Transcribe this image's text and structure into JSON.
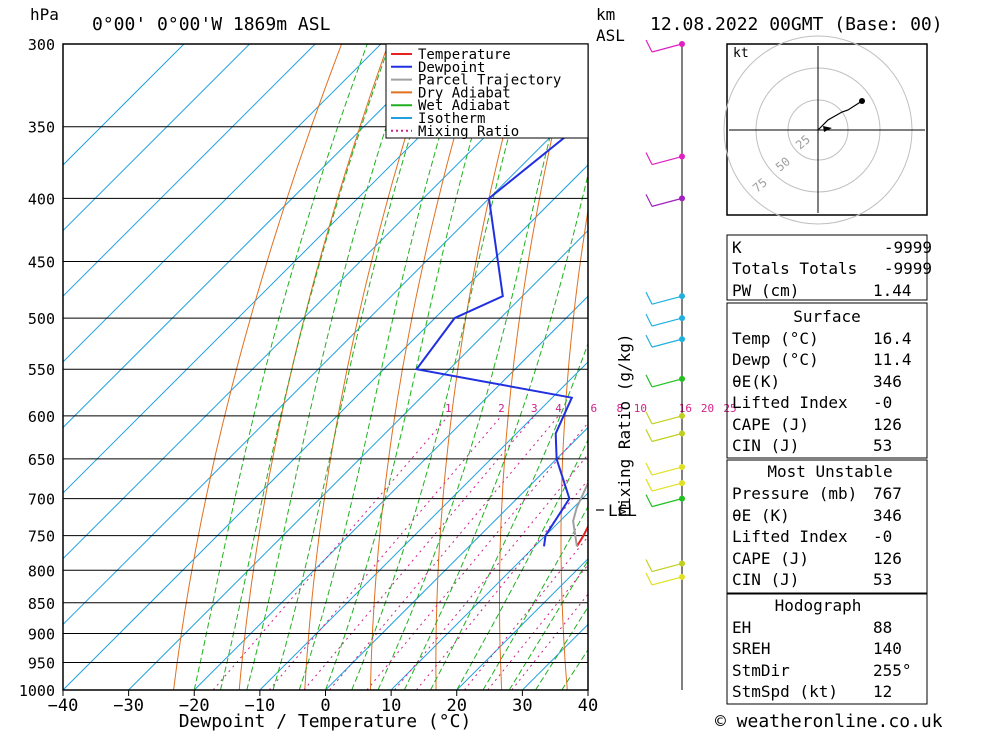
{
  "header": {
    "pressure_unit": "hPa",
    "location": "0°00' 0°00'W  1869m  ASL",
    "km_label": "km",
    "asl_label": "ASL",
    "datetime": "12.08.2022  00GMT  (Base: 00)"
  },
  "footer": {
    "credit": "© weatheronline.co.uk"
  },
  "legend": [
    {
      "label": "Temperature",
      "color": "#e82020",
      "dashed": false
    },
    {
      "label": "Dewpoint",
      "color": "#2030e0",
      "dashed": false
    },
    {
      "label": "Parcel Trajectory",
      "color": "#a0a0a0",
      "dashed": false
    },
    {
      "label": "Dry Adiabat",
      "color": "#e07020",
      "dashed": false
    },
    {
      "label": "Wet Adiabat",
      "color": "#20b020",
      "dashed": false
    },
    {
      "label": "Isotherm",
      "color": "#20a0e0",
      "dashed": false
    },
    {
      "label": "Mixing Ratio",
      "color": "#d0208a",
      "dashed": true
    }
  ],
  "chart_data": {
    "type": "line",
    "subtype": "skew-T log-P diagram",
    "xlabel": "Dewpoint / Temperature (°C)",
    "ylabel": "hPa",
    "xlim": [
      -40,
      40
    ],
    "ylim": [
      1000,
      300
    ],
    "y_scale": "log",
    "pressure_ticks": [
      300,
      350,
      400,
      450,
      500,
      550,
      600,
      650,
      700,
      750,
      800,
      850,
      900,
      950,
      1000
    ],
    "temperature_ticks": [
      -40,
      -30,
      -20,
      -10,
      0,
      10,
      20,
      30,
      40
    ],
    "mixing_ratio_axis_label": "Mixing Ratio (g/kg)",
    "mixing_ratio_values": [
      1,
      2,
      3,
      4,
      6,
      8,
      10,
      16,
      20,
      25
    ],
    "lcl_label": "LCL",
    "lcl_pressure": 712,
    "series": [
      {
        "name": "Temperature",
        "color": "#e82020",
        "pressure": [
          765,
          750,
          700,
          650,
          620,
          590,
          580,
          570,
          550,
          500,
          450,
          400,
          365
        ],
        "temp": [
          16.4,
          15.8,
          13.0,
          10.5,
          7.0,
          3.0,
          1.5,
          3.5,
          2.8,
          -2.5,
          -10.2,
          -18.0,
          -24.0
        ]
      },
      {
        "name": "Dewpoint",
        "color": "#2030e0",
        "pressure": [
          765,
          750,
          700,
          650,
          620,
          580,
          550,
          500,
          480,
          400,
          310,
          300
        ],
        "temp": [
          11.4,
          10.0,
          8.0,
          0.0,
          -4.0,
          -7.0,
          -35.0,
          -37.0,
          -33.0,
          -50.0,
          -45.0,
          -52.0
        ]
      },
      {
        "name": "Parcel Trajectory",
        "color": "#a0a0a0",
        "pressure": [
          765,
          730,
          712,
          650,
          600,
          550,
          500,
          450,
          400,
          365,
          300
        ],
        "temp": [
          16.4,
          12.0,
          10.5,
          6.5,
          3.0,
          -1.5,
          -5.0,
          -11.0,
          -19.0,
          -25.0,
          -38.0
        ]
      }
    ]
  },
  "wind_profile": {
    "levels": [
      {
        "pressure": 300,
        "color": "#e020c0"
      },
      {
        "pressure": 370,
        "color": "#e020c0"
      },
      {
        "pressure": 400,
        "color": "#a020c0"
      },
      {
        "pressure": 480,
        "color": "#20b0e0"
      },
      {
        "pressure": 500,
        "color": "#20b0e0"
      },
      {
        "pressure": 520,
        "color": "#20b0e0"
      },
      {
        "pressure": 560,
        "color": "#20c020"
      },
      {
        "pressure": 600,
        "color": "#c0d020"
      },
      {
        "pressure": 620,
        "color": "#c0d020"
      },
      {
        "pressure": 660,
        "color": "#e0e020"
      },
      {
        "pressure": 680,
        "color": "#e0e020"
      },
      {
        "pressure": 700,
        "color": "#20c020"
      },
      {
        "pressure": 790,
        "color": "#c0d020"
      },
      {
        "pressure": 810,
        "color": "#e0e020"
      }
    ]
  },
  "hodograph": {
    "unit_label": "kt",
    "ring_labels": [
      "25",
      "50",
      "75"
    ]
  },
  "indices": {
    "k_label": "K",
    "k_value": "-9999",
    "tt_label": "Totals Totals",
    "tt_value": "-9999",
    "pw_label": "PW (cm)",
    "pw_value": "1.44",
    "surface_title": "Surface",
    "s_temp_label": "Temp (°C)",
    "s_temp_value": "16.4",
    "s_dewp_label": "Dewp (°C)",
    "s_dewp_value": "11.4",
    "s_theta_label": "θE(K)",
    "s_theta_value": "346",
    "s_li_label": "Lifted Index",
    "s_li_value": "-0",
    "s_cape_label": "CAPE (J)",
    "s_cape_value": "126",
    "s_cin_label": "CIN (J)",
    "s_cin_value": "53",
    "mu_title": "Most Unstable",
    "mu_pres_label": "Pressure (mb)",
    "mu_pres_value": "767",
    "mu_theta_label": "θE (K)",
    "mu_theta_value": "346",
    "mu_li_label": "Lifted Index",
    "mu_li_value": "-0",
    "mu_cape_label": "CAPE (J)",
    "mu_cape_value": "126",
    "mu_cin_label": "CIN (J)",
    "mu_cin_value": "53",
    "hodo_title": "Hodograph",
    "eh_label": "EH",
    "eh_value": "88",
    "sreh_label": "SREH",
    "sreh_value": "140",
    "stmdir_label": "StmDir",
    "stmdir_value": "255°",
    "stmspd_label": "StmSpd (kt)",
    "stmspd_value": "12"
  }
}
